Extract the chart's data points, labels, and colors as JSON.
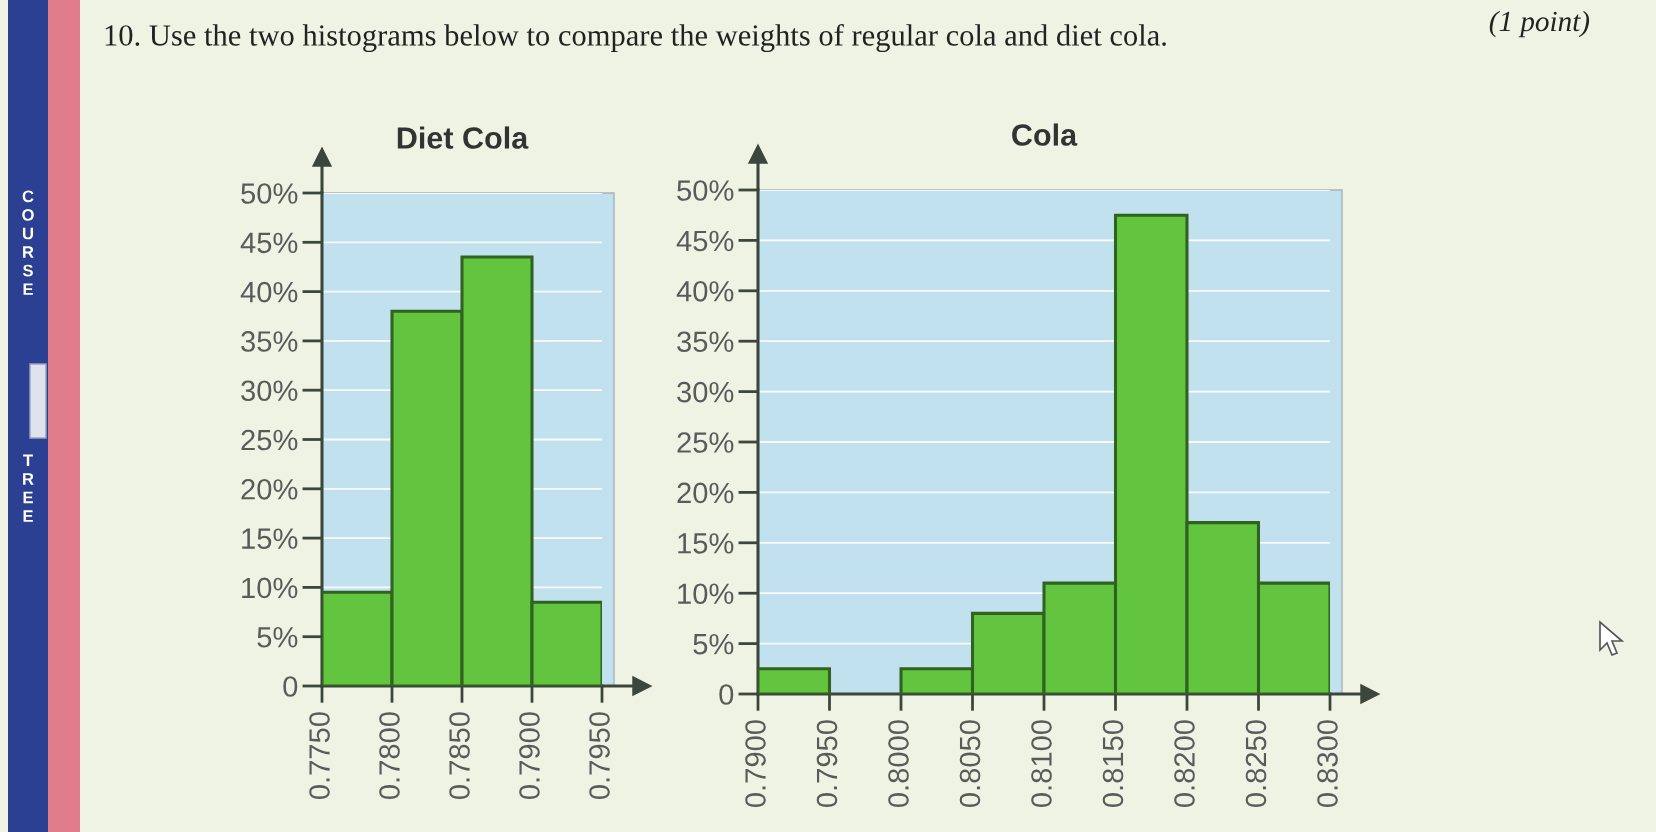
{
  "chart_data": [
    {
      "type": "histogram",
      "title": "Diet Cola",
      "bins": [
        0.775,
        0.78,
        0.785,
        0.79,
        0.795
      ],
      "values": [
        9.5,
        38,
        43.5,
        8.5
      ],
      "color": "#62c43f",
      "xlim": [
        0.775,
        0.795
      ],
      "xticks": [
        {
          "value": 0.775,
          "label": "0.7750"
        },
        {
          "value": 0.78,
          "label": "0.7800"
        },
        {
          "value": 0.785,
          "label": "0.7850"
        },
        {
          "value": 0.79,
          "label": "0.7900"
        },
        {
          "value": 0.795,
          "label": "0.7950"
        }
      ],
      "ylim": [
        0,
        50
      ],
      "yticks": [
        0,
        {
          "value": 5,
          "label": "5%"
        },
        {
          "value": 10,
          "label": "10%"
        },
        {
          "value": 15,
          "label": "15%"
        },
        {
          "value": 20,
          "label": "20%"
        },
        {
          "value": 25,
          "label": "25%"
        },
        {
          "value": 30,
          "label": "30%"
        },
        {
          "value": 35,
          "label": "35%"
        },
        {
          "value": 40,
          "label": "40%"
        },
        {
          "value": 45,
          "label": "45%"
        },
        {
          "value": 50,
          "label": "50%"
        }
      ],
      "grid": "y",
      "annotations": [
        "10. Use the two histograms below to compare the weights of regular cola and diet cola.",
        "(1 point)",
        "COURSE",
        "TREE"
      ]
    },
    {
      "type": "histogram",
      "title": "Cola",
      "bins": [
        0.79,
        0.795,
        0.8,
        0.805,
        0.81,
        0.815,
        0.82,
        0.825,
        0.83
      ],
      "values": [
        2.5,
        0,
        2.5,
        8,
        11,
        47.5,
        17,
        11
      ],
      "color": "#62c43f",
      "xlim": [
        0.79,
        0.83
      ],
      "xticks": [
        {
          "value": 0.79,
          "label": "0.7900"
        },
        {
          "value": 0.795,
          "label": "0.7950"
        },
        {
          "value": 0.8,
          "label": "0.8000"
        },
        {
          "value": 0.805,
          "label": "0.8050"
        },
        {
          "value": 0.81,
          "label": "0.8100"
        },
        {
          "value": 0.815,
          "label": "0.8150"
        },
        {
          "value": 0.82,
          "label": "0.8200"
        },
        {
          "value": 0.825,
          "label": "0.8250"
        },
        {
          "value": 0.83,
          "label": "0.8300"
        }
      ],
      "ylim": [
        0,
        50
      ],
      "yticks": [
        0,
        {
          "value": 5,
          "label": "5%"
        },
        {
          "value": 10,
          "label": "10%"
        },
        {
          "value": 15,
          "label": "15%"
        },
        {
          "value": 20,
          "label": "20%"
        },
        {
          "value": 25,
          "label": "25%"
        },
        {
          "value": 30,
          "label": "30%"
        },
        {
          "value": 35,
          "label": "35%"
        },
        {
          "value": 40,
          "label": "40%"
        },
        {
          "value": 45,
          "label": "45%"
        },
        {
          "value": 50,
          "label": "50%"
        }
      ],
      "grid": "y"
    }
  ]
}
